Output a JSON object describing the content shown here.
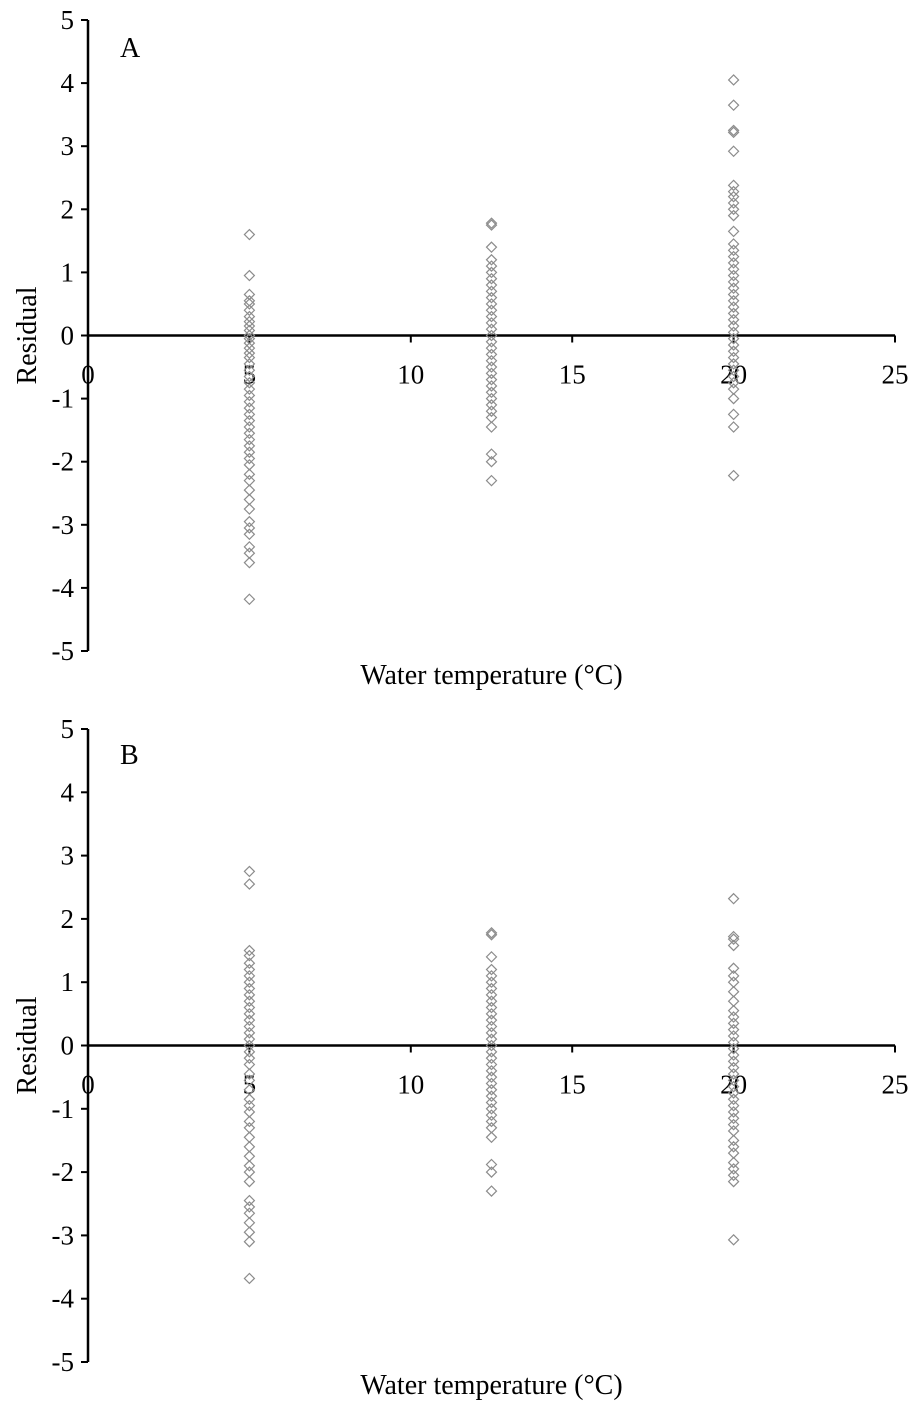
{
  "chart_data": [
    {
      "type": "scatter",
      "panel_label": "A",
      "xlabel": "Water temperature (°C)",
      "ylabel": "Residual",
      "xlim": [
        0,
        25
      ],
      "ylim": [
        -5,
        5
      ],
      "xticks": [
        0,
        5,
        10,
        15,
        20,
        25
      ],
      "yticks": [
        -5,
        -4,
        -3,
        -2,
        -1,
        0,
        1,
        2,
        3,
        4,
        5
      ],
      "grid": false,
      "legend": "none",
      "marker": "open-diamond",
      "series": [
        {
          "points": [
            [
              5,
              1.6
            ],
            [
              5,
              0.95
            ],
            [
              5,
              0.65
            ],
            [
              5,
              0.55
            ],
            [
              5,
              0.5
            ],
            [
              5,
              0.4
            ],
            [
              5,
              0.3
            ],
            [
              5,
              0.22
            ],
            [
              5,
              0.15
            ],
            [
              5,
              0.08
            ],
            [
              5,
              0.0
            ],
            [
              5,
              -0.05
            ],
            [
              5,
              -0.12
            ],
            [
              5,
              -0.2
            ],
            [
              5,
              -0.28
            ],
            [
              5,
              -0.35
            ],
            [
              5,
              -0.45
            ],
            [
              5,
              -0.55
            ],
            [
              5,
              -0.65
            ],
            [
              5,
              -0.75
            ],
            [
              5,
              -0.85
            ],
            [
              5,
              -0.95
            ],
            [
              5,
              -1.05
            ],
            [
              5,
              -1.15
            ],
            [
              5,
              -1.25
            ],
            [
              5,
              -1.35
            ],
            [
              5,
              -1.45
            ],
            [
              5,
              -1.55
            ],
            [
              5,
              -1.65
            ],
            [
              5,
              -1.75
            ],
            [
              5,
              -1.85
            ],
            [
              5,
              -1.95
            ],
            [
              5,
              -2.05
            ],
            [
              5,
              -2.2
            ],
            [
              5,
              -2.3
            ],
            [
              5,
              -2.45
            ],
            [
              5,
              -2.6
            ],
            [
              5,
              -2.75
            ],
            [
              5,
              -2.95
            ],
            [
              5,
              -3.05
            ],
            [
              5,
              -3.15
            ],
            [
              5,
              -3.35
            ],
            [
              5,
              -3.45
            ],
            [
              5,
              -3.6
            ],
            [
              5,
              -4.18
            ],
            [
              12.5,
              1.78
            ],
            [
              12.5,
              1.75
            ],
            [
              12.5,
              1.4
            ],
            [
              12.5,
              1.2
            ],
            [
              12.5,
              1.1
            ],
            [
              12.5,
              1.0
            ],
            [
              12.5,
              0.9
            ],
            [
              12.5,
              0.8
            ],
            [
              12.5,
              0.7
            ],
            [
              12.5,
              0.6
            ],
            [
              12.5,
              0.5
            ],
            [
              12.5,
              0.4
            ],
            [
              12.5,
              0.3
            ],
            [
              12.5,
              0.2
            ],
            [
              12.5,
              0.1
            ],
            [
              12.5,
              0.0
            ],
            [
              12.5,
              -0.1
            ],
            [
              12.5,
              -0.2
            ],
            [
              12.5,
              -0.3
            ],
            [
              12.5,
              -0.4
            ],
            [
              12.5,
              -0.5
            ],
            [
              12.5,
              -0.6
            ],
            [
              12.5,
              -0.7
            ],
            [
              12.5,
              -0.8
            ],
            [
              12.5,
              -0.9
            ],
            [
              12.5,
              -1.0
            ],
            [
              12.5,
              -1.1
            ],
            [
              12.5,
              -1.2
            ],
            [
              12.5,
              -1.3
            ],
            [
              12.5,
              -1.45
            ],
            [
              12.5,
              -1.88
            ],
            [
              12.5,
              -2.0
            ],
            [
              12.5,
              -2.3
            ],
            [
              20,
              4.05
            ],
            [
              20,
              3.65
            ],
            [
              20,
              3.25
            ],
            [
              20,
              3.22
            ],
            [
              20,
              2.92
            ],
            [
              20,
              2.38
            ],
            [
              20,
              2.28
            ],
            [
              20,
              2.2
            ],
            [
              20,
              2.1
            ],
            [
              20,
              2.0
            ],
            [
              20,
              1.9
            ],
            [
              20,
              1.65
            ],
            [
              20,
              1.45
            ],
            [
              20,
              1.35
            ],
            [
              20,
              1.25
            ],
            [
              20,
              1.15
            ],
            [
              20,
              1.05
            ],
            [
              20,
              0.95
            ],
            [
              20,
              0.85
            ],
            [
              20,
              0.75
            ],
            [
              20,
              0.65
            ],
            [
              20,
              0.55
            ],
            [
              20,
              0.45
            ],
            [
              20,
              0.35
            ],
            [
              20,
              0.25
            ],
            [
              20,
              0.15
            ],
            [
              20,
              0.05
            ],
            [
              20,
              -0.05
            ],
            [
              20,
              -0.15
            ],
            [
              20,
              -0.25
            ],
            [
              20,
              -0.35
            ],
            [
              20,
              -0.45
            ],
            [
              20,
              -0.55
            ],
            [
              20,
              -0.65
            ],
            [
              20,
              -0.75
            ],
            [
              20,
              -0.85
            ],
            [
              20,
              -1.0
            ],
            [
              20,
              -1.25
            ],
            [
              20,
              -1.45
            ],
            [
              20,
              -2.22
            ]
          ]
        }
      ]
    },
    {
      "type": "scatter",
      "panel_label": "B",
      "xlabel": "Water temperature (°C)",
      "ylabel": "Residual",
      "xlim": [
        0,
        25
      ],
      "ylim": [
        -5,
        5
      ],
      "xticks": [
        0,
        5,
        10,
        15,
        20,
        25
      ],
      "yticks": [
        -5,
        -4,
        -3,
        -2,
        -1,
        0,
        1,
        2,
        3,
        4,
        5
      ],
      "grid": false,
      "legend": "none",
      "marker": "open-diamond",
      "series": [
        {
          "points": [
            [
              5,
              2.75
            ],
            [
              5,
              2.55
            ],
            [
              5,
              1.5
            ],
            [
              5,
              1.42
            ],
            [
              5,
              1.3
            ],
            [
              5,
              1.2
            ],
            [
              5,
              1.1
            ],
            [
              5,
              1.0
            ],
            [
              5,
              0.9
            ],
            [
              5,
              0.8
            ],
            [
              5,
              0.7
            ],
            [
              5,
              0.6
            ],
            [
              5,
              0.5
            ],
            [
              5,
              0.4
            ],
            [
              5,
              0.3
            ],
            [
              5,
              0.2
            ],
            [
              5,
              0.1
            ],
            [
              5,
              0.0
            ],
            [
              5,
              -0.1
            ],
            [
              5,
              -0.2
            ],
            [
              5,
              -0.3
            ],
            [
              5,
              -0.45
            ],
            [
              5,
              -0.55
            ],
            [
              5,
              -0.7
            ],
            [
              5,
              -0.85
            ],
            [
              5,
              -0.95
            ],
            [
              5,
              -1.05
            ],
            [
              5,
              -1.2
            ],
            [
              5,
              -1.3
            ],
            [
              5,
              -1.45
            ],
            [
              5,
              -1.6
            ],
            [
              5,
              -1.75
            ],
            [
              5,
              -1.9
            ],
            [
              5,
              -2.0
            ],
            [
              5,
              -2.15
            ],
            [
              5,
              -2.45
            ],
            [
              5,
              -2.55
            ],
            [
              5,
              -2.65
            ],
            [
              5,
              -2.8
            ],
            [
              5,
              -2.95
            ],
            [
              5,
              -3.1
            ],
            [
              5,
              -3.68
            ],
            [
              12.5,
              1.78
            ],
            [
              12.5,
              1.75
            ],
            [
              12.5,
              1.4
            ],
            [
              12.5,
              1.2
            ],
            [
              12.5,
              1.1
            ],
            [
              12.5,
              1.0
            ],
            [
              12.5,
              0.9
            ],
            [
              12.5,
              0.8
            ],
            [
              12.5,
              0.7
            ],
            [
              12.5,
              0.6
            ],
            [
              12.5,
              0.5
            ],
            [
              12.5,
              0.4
            ],
            [
              12.5,
              0.3
            ],
            [
              12.5,
              0.2
            ],
            [
              12.5,
              0.1
            ],
            [
              12.5,
              0.0
            ],
            [
              12.5,
              -0.1
            ],
            [
              12.5,
              -0.2
            ],
            [
              12.5,
              -0.3
            ],
            [
              12.5,
              -0.4
            ],
            [
              12.5,
              -0.5
            ],
            [
              12.5,
              -0.6
            ],
            [
              12.5,
              -0.7
            ],
            [
              12.5,
              -0.8
            ],
            [
              12.5,
              -0.9
            ],
            [
              12.5,
              -1.0
            ],
            [
              12.5,
              -1.1
            ],
            [
              12.5,
              -1.2
            ],
            [
              12.5,
              -1.3
            ],
            [
              12.5,
              -1.45
            ],
            [
              12.5,
              -1.88
            ],
            [
              12.5,
              -2.0
            ],
            [
              12.5,
              -2.3
            ],
            [
              20,
              2.32
            ],
            [
              20,
              1.72
            ],
            [
              20,
              1.68
            ],
            [
              20,
              1.58
            ],
            [
              20,
              1.22
            ],
            [
              20,
              1.1
            ],
            [
              20,
              1.0
            ],
            [
              20,
              0.85
            ],
            [
              20,
              0.7
            ],
            [
              20,
              0.55
            ],
            [
              20,
              0.45
            ],
            [
              20,
              0.35
            ],
            [
              20,
              0.25
            ],
            [
              20,
              0.15
            ],
            [
              20,
              0.05
            ],
            [
              20,
              -0.05
            ],
            [
              20,
              -0.15
            ],
            [
              20,
              -0.25
            ],
            [
              20,
              -0.35
            ],
            [
              20,
              -0.45
            ],
            [
              20,
              -0.55
            ],
            [
              20,
              -0.65
            ],
            [
              20,
              -0.75
            ],
            [
              20,
              -0.85
            ],
            [
              20,
              -0.95
            ],
            [
              20,
              -1.05
            ],
            [
              20,
              -1.15
            ],
            [
              20,
              -1.25
            ],
            [
              20,
              -1.35
            ],
            [
              20,
              -1.5
            ],
            [
              20,
              -1.6
            ],
            [
              20,
              -1.7
            ],
            [
              20,
              -1.85
            ],
            [
              20,
              -1.95
            ],
            [
              20,
              -2.05
            ],
            [
              20,
              -2.15
            ],
            [
              20,
              -3.07
            ]
          ]
        }
      ]
    }
  ]
}
